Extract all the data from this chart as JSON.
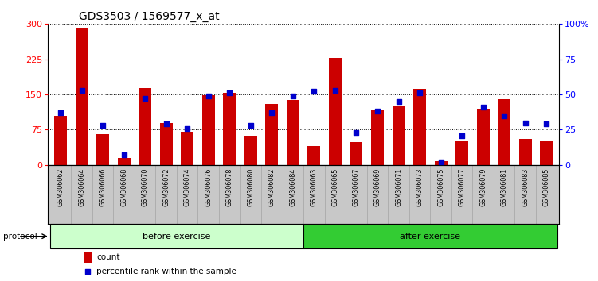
{
  "title": "GDS3503 / 1569577_x_at",
  "categories": [
    "GSM306062",
    "GSM306064",
    "GSM306066",
    "GSM306068",
    "GSM306070",
    "GSM306072",
    "GSM306074",
    "GSM306076",
    "GSM306078",
    "GSM306080",
    "GSM306082",
    "GSM306084",
    "GSM306063",
    "GSM306065",
    "GSM306067",
    "GSM306069",
    "GSM306071",
    "GSM306073",
    "GSM306075",
    "GSM306077",
    "GSM306079",
    "GSM306081",
    "GSM306083",
    "GSM306085"
  ],
  "counts": [
    105,
    292,
    65,
    15,
    163,
    90,
    70,
    148,
    153,
    63,
    130,
    138,
    40,
    228,
    48,
    118,
    125,
    162,
    8,
    50,
    120,
    140,
    55,
    50
  ],
  "percentile": [
    37,
    53,
    28,
    7,
    47,
    29,
    26,
    49,
    51,
    28,
    37,
    49,
    52,
    53,
    23,
    38,
    45,
    51,
    2,
    21,
    41,
    35,
    30,
    29
  ],
  "before_count": 12,
  "after_count": 12,
  "left_ylim": [
    0,
    300
  ],
  "right_ylim": [
    0,
    100
  ],
  "left_yticks": [
    0,
    75,
    150,
    225,
    300
  ],
  "right_yticks": [
    0,
    25,
    50,
    75,
    100
  ],
  "right_yticklabels": [
    "0",
    "25",
    "50",
    "75",
    "100%"
  ],
  "bar_color": "#CC0000",
  "dot_color": "#0000CC",
  "before_color": "#CCFFCC",
  "after_color": "#33CC33",
  "tick_bg_color": "#C8C8C8",
  "title_fontsize": 10,
  "protocol_label": "protocol",
  "before_label": "before exercise",
  "after_label": "after exercise",
  "legend_count": "count",
  "legend_percentile": "percentile rank within the sample"
}
